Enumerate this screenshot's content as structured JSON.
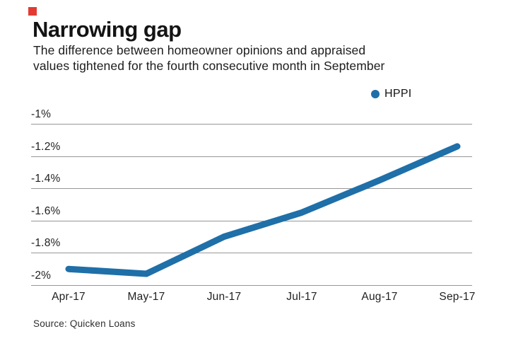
{
  "colors": {
    "line": "#1f6fa8",
    "grid": "#979797",
    "brand_red": "#e23b33"
  },
  "header": {
    "title": "Narrowing gap",
    "subtitle": "The difference between homeowner opinions and appraised\nvalues tightened for the fourth consecutive month in September"
  },
  "legend": {
    "label": "HPPI"
  },
  "chart_data": {
    "type": "line",
    "title": "Narrowing gap",
    "subtitle": "The difference between homeowner opinions and appraised values tightened for the fourth consecutive month in September",
    "categories": [
      "Apr-17",
      "May-17",
      "Jun-17",
      "Jul-17",
      "Aug-17",
      "Sep-17"
    ],
    "series": [
      {
        "name": "HPPI",
        "values": [
          -1.9,
          -1.93,
          -1.7,
          -1.55,
          -1.35,
          -1.14
        ]
      }
    ],
    "xlabel": "",
    "ylabel": "",
    "ylim": [
      -2,
      -1
    ],
    "yticks": [
      "-1%",
      "-1.2%",
      "-1.4%",
      "-1.6%",
      "-1.8%",
      "-2%"
    ],
    "ytick_values": [
      -1,
      -1.2,
      -1.4,
      -1.6,
      -1.8,
      -2
    ],
    "grid": true,
    "legend_position": "top-right",
    "line_color": "#1f6fa8"
  },
  "source": {
    "text": "Source: Quicken Loans"
  }
}
